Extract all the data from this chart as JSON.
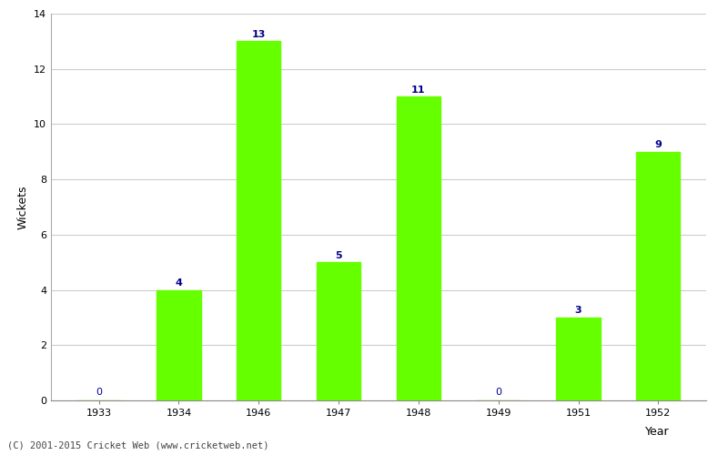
{
  "years": [
    "1933",
    "1934",
    "1946",
    "1947",
    "1948",
    "1949",
    "1951",
    "1952"
  ],
  "wickets": [
    0,
    4,
    13,
    5,
    11,
    0,
    3,
    9
  ],
  "bar_color": "#66ff00",
  "bar_edge_color": "#66ff00",
  "label_color": "#00008B",
  "xlabel": "Year",
  "ylabel": "Wickets",
  "ylim": [
    0,
    14
  ],
  "yticks": [
    0,
    2,
    4,
    6,
    8,
    10,
    12,
    14
  ],
  "grid_color": "#cccccc",
  "bg_color": "#ffffff",
  "footer": "(C) 2001-2015 Cricket Web (www.cricketweb.net)",
  "label_fontsize": 8,
  "axis_label_fontsize": 9,
  "tick_fontsize": 8,
  "footer_fontsize": 7.5,
  "bar_width": 0.55
}
